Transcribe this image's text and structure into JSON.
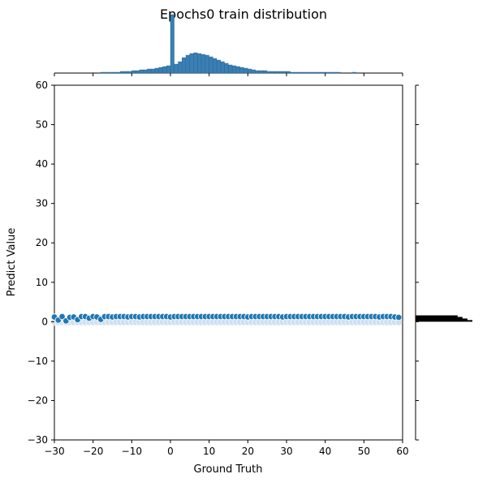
{
  "chart_data": {
    "type": "scatter",
    "title": "Epochs0 train distribution",
    "xlabel": "Ground Truth",
    "ylabel": "Predict Value",
    "xlim": [
      -30,
      60
    ],
    "ylim": [
      -30,
      60
    ],
    "xticks": [
      -30,
      -20,
      -10,
      0,
      10,
      20,
      30,
      40,
      50,
      60
    ],
    "yticks": [
      -30,
      -20,
      -10,
      0,
      10,
      20,
      30,
      40,
      50,
      60
    ],
    "xtick_labels": [
      "−30",
      "−20",
      "−10",
      "0",
      "10",
      "20",
      "30",
      "40",
      "50",
      "60"
    ],
    "ytick_labels": [
      "−30",
      "−20",
      "−10",
      "0",
      "10",
      "20",
      "30",
      "40",
      "50",
      "60"
    ],
    "grid": false,
    "colors": {
      "points": "#1f77b4",
      "point_edge": "#ffffff",
      "hist_fill": "#3a7fb4",
      "hist_edge": "#1f5f8f"
    },
    "scatter": {
      "x": [
        -30,
        -29,
        -28,
        -27,
        -26,
        -25,
        -24,
        -23,
        -22,
        -21,
        -20,
        -19,
        -18,
        -17,
        -16,
        -15,
        -14,
        -13,
        -12,
        -11,
        -10,
        -9,
        -8,
        -7,
        -6,
        -5,
        -4,
        -3,
        -2,
        -1,
        0,
        1,
        2,
        3,
        4,
        5,
        6,
        7,
        8,
        9,
        10,
        11,
        12,
        13,
        14,
        15,
        16,
        17,
        18,
        19,
        20,
        21,
        22,
        23,
        24,
        25,
        26,
        27,
        28,
        29,
        30,
        31,
        32,
        33,
        34,
        35,
        36,
        37,
        38,
        39,
        40,
        41,
        42,
        43,
        44,
        45,
        46,
        47,
        48,
        49,
        50,
        51,
        52,
        53,
        54,
        55,
        56,
        57,
        58,
        59
      ],
      "y": [
        1.2,
        0.4,
        1.3,
        0.2,
        1.1,
        1.2,
        0.5,
        1.3,
        1.3,
        0.9,
        1.3,
        1.2,
        0.6,
        1.3,
        1.3,
        1.2,
        1.3,
        1.3,
        1.3,
        1.2,
        1.3,
        1.3,
        1.2,
        1.3,
        1.3,
        1.3,
        1.3,
        1.3,
        1.3,
        1.3,
        1.2,
        1.3,
        1.3,
        1.3,
        1.3,
        1.3,
        1.3,
        1.3,
        1.3,
        1.3,
        1.3,
        1.3,
        1.3,
        1.3,
        1.3,
        1.3,
        1.3,
        1.3,
        1.3,
        1.3,
        1.2,
        1.3,
        1.3,
        1.3,
        1.3,
        1.3,
        1.3,
        1.3,
        1.3,
        1.2,
        1.3,
        1.3,
        1.3,
        1.3,
        1.3,
        1.3,
        1.3,
        1.3,
        1.3,
        1.3,
        1.3,
        1.3,
        1.3,
        1.3,
        1.3,
        1.3,
        1.2,
        1.3,
        1.3,
        1.3,
        1.3,
        1.3,
        1.3,
        1.3,
        1.2,
        1.3,
        1.3,
        1.3,
        1.2,
        1.1
      ]
    },
    "x_marginal_hist": {
      "bin_starts": [
        -30,
        -29,
        -28,
        -27,
        -26,
        -25,
        -24,
        -23,
        -22,
        -21,
        -20,
        -19,
        -18,
        -17,
        -16,
        -15,
        -14,
        -13,
        -12,
        -11,
        -10,
        -9,
        -8,
        -7,
        -6,
        -5,
        -4,
        -3,
        -2,
        -1,
        0,
        1,
        2,
        3,
        4,
        5,
        6,
        7,
        8,
        9,
        10,
        11,
        12,
        13,
        14,
        15,
        16,
        17,
        18,
        19,
        20,
        21,
        22,
        23,
        24,
        25,
        26,
        27,
        28,
        29,
        30,
        31,
        32,
        33,
        34,
        35,
        36,
        37,
        38,
        39,
        40,
        41,
        42,
        43,
        44,
        45,
        46,
        47,
        48,
        49,
        50,
        51,
        52,
        53,
        54,
        55,
        56,
        57,
        58,
        59
      ],
      "bin_width": 1,
      "counts": [
        0,
        0,
        0,
        0,
        0,
        0,
        0,
        0,
        0,
        0,
        0,
        0,
        1,
        1,
        1,
        1,
        1,
        2,
        2,
        2,
        3,
        3,
        4,
        4,
        5,
        5,
        6,
        7,
        8,
        9,
        72,
        11,
        14,
        19,
        22,
        24,
        25,
        24,
        23,
        22,
        20,
        18,
        16,
        14,
        12,
        10,
        9,
        8,
        7,
        6,
        5,
        4,
        3,
        3,
        3,
        2,
        2,
        2,
        2,
        2,
        2,
        1,
        1,
        1,
        1,
        1,
        1,
        1,
        1,
        1,
        1,
        1,
        1,
        1,
        0,
        0,
        0,
        1,
        0,
        0,
        0,
        0,
        0,
        0,
        0,
        0,
        0,
        0,
        0,
        0
      ]
    },
    "y_marginal_hist": {
      "bins": [
        1.4,
        1.0,
        0.6,
        0.2
      ],
      "counts": [
        170,
        190,
        210,
        230
      ]
    }
  }
}
